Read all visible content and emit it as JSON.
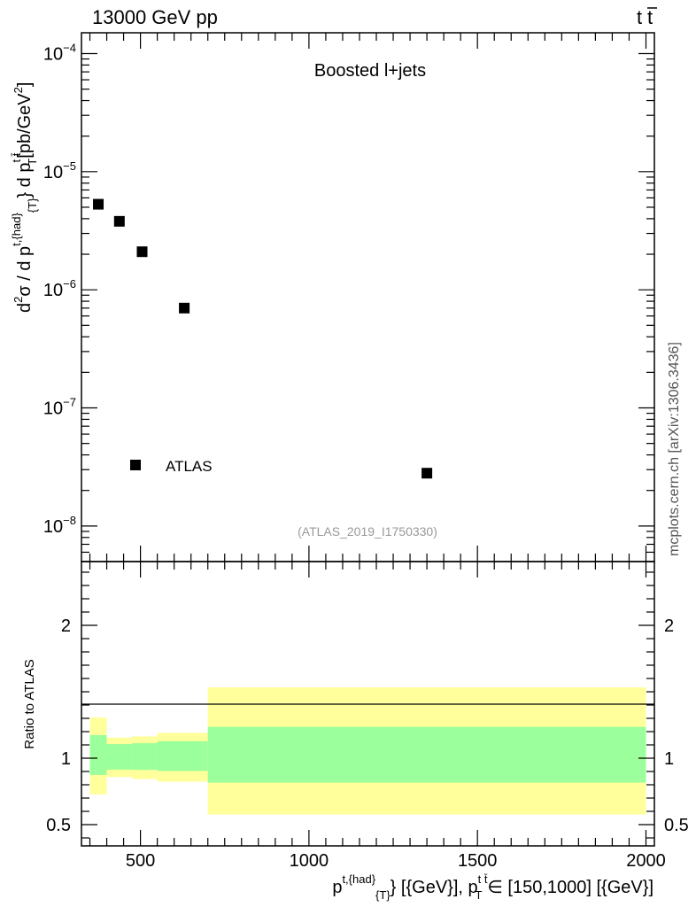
{
  "header": {
    "left": "13000 GeV pp",
    "right_main": "t",
    "right_bar": "t"
  },
  "side_text": "mcplots.cern.ch [arXiv:1306.3436]",
  "chart_data": [
    {
      "type": "scatter",
      "panel": "main",
      "title": "Boosted l+jets",
      "analysis_id": "(ATLAS_2019_I1750330)",
      "legend": {
        "label": "ATLAS",
        "placement": "bottom-left"
      },
      "ylabel": {
        "d2": "d",
        "sup2": "2",
        "sigma": "σ  /  d p",
        "sup_a": "t,{had",
        "close_a": "}",
        "sub_a": "{T}",
        "mid": "} d p",
        "sup_b": "t t̄",
        "sub_b": "T",
        "unit": "[pb/GeV",
        "unit_sup": "2",
        "unit_close": "]"
      },
      "y_scale": "log",
      "ylim": [
        5e-09,
        0.00015
      ],
      "xlim": [
        325,
        2025
      ],
      "y_ticks": [
        {
          "value": 1e-08,
          "base": "10",
          "exp": "−8"
        },
        {
          "value": 1e-07,
          "base": "10",
          "exp": "−7"
        },
        {
          "value": 1e-06,
          "base": "10",
          "exp": "−6"
        },
        {
          "value": 1e-05,
          "base": "10",
          "exp": "−5"
        },
        {
          "value": 0.0001,
          "base": "10",
          "exp": "−4"
        }
      ],
      "series": [
        {
          "name": "ATLAS",
          "x": [
            375,
            437.5,
            505,
            630,
            1350
          ],
          "y": [
            5.3e-06,
            3.8e-06,
            2.1e-06,
            7e-07,
            2.8e-08
          ]
        }
      ]
    },
    {
      "type": "area",
      "panel": "ratio",
      "ylabel": "Ratio to ATLAS",
      "ylim": [
        0.34,
        2.48
      ],
      "xlim": [
        325,
        2025
      ],
      "x_ticks": [
        "500",
        "1000",
        "1500",
        "2000"
      ],
      "x_tick_values": [
        500,
        1000,
        1500,
        2000
      ],
      "y_ticks": [
        "0.5",
        "1",
        "2"
      ],
      "y_tick_values": [
        0.5,
        1,
        2
      ],
      "xlabel": {
        "p1": "p",
        "sup1": "t,{had",
        "close1": "}",
        "sub1": "{T}",
        "mid": "} [{GeV}], p",
        "sup2": "t t̄",
        "sub2": "T",
        "tail": "∈ [150,1000] [{GeV}]"
      },
      "bins": [
        {
          "lo": 350,
          "hi": 400,
          "stat": [
            0.874,
            1.174
          ],
          "total": [
            0.728,
            1.306
          ]
        },
        {
          "lo": 400,
          "hi": 475,
          "stat": [
            0.914,
            1.106
          ],
          "total": [
            0.858,
            1.155
          ]
        },
        {
          "lo": 475,
          "hi": 550,
          "stat": [
            0.912,
            1.113
          ],
          "total": [
            0.843,
            1.164
          ]
        },
        {
          "lo": 550,
          "hi": 700,
          "stat": [
            0.904,
            1.128
          ],
          "total": [
            0.824,
            1.191
          ]
        },
        {
          "lo": 700,
          "hi": 2000,
          "stat": [
            0.816,
            1.236
          ],
          "total": [
            0.576,
            1.533
          ]
        }
      ],
      "colors": {
        "stat": "#9bff9b",
        "total": "#ffff9b"
      }
    }
  ]
}
